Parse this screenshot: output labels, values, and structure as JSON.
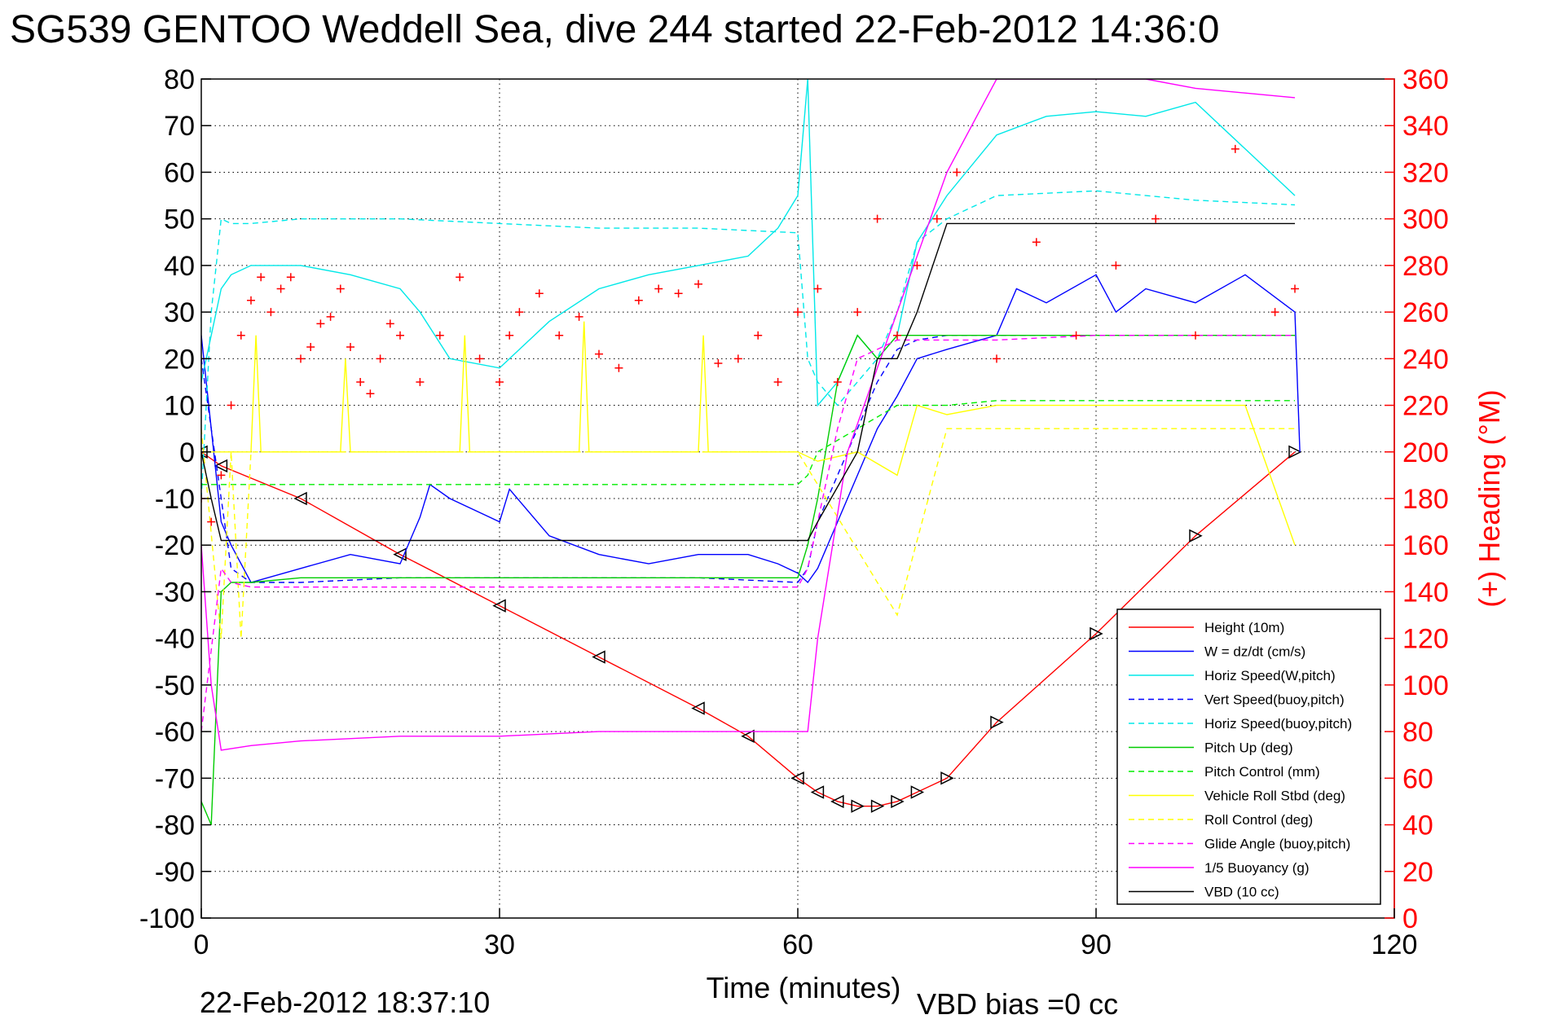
{
  "page": {
    "title": "SG539 GENTOO Weddell Sea, dive 244 started 22-Feb-2012 14:36:0",
    "timestamp": "22-Feb-2012 18:37:10",
    "vbd_bias": "VBD bias =0 cc"
  },
  "chart_data": {
    "type": "line",
    "title": "SG539 GENTOO Weddell Sea, dive 244 started 22-Feb-2012 14:36:0",
    "xlabel": "Time (minutes)",
    "ylabel": "",
    "y2label": "(+) Heading (°M)",
    "xlim": [
      0,
      120
    ],
    "ylim": [
      -100,
      80
    ],
    "y2lim": [
      0,
      360
    ],
    "xticks": [
      "0",
      "30",
      "60",
      "90",
      "120"
    ],
    "yticks": [
      "-100",
      "-90",
      "-80",
      "-70",
      "-60",
      "-50",
      "-40",
      "-30",
      "-20",
      "-10",
      "0",
      "10",
      "20",
      "30",
      "40",
      "50",
      "60",
      "70",
      "80"
    ],
    "y2ticks": [
      "0",
      "20",
      "40",
      "60",
      "80",
      "100",
      "120",
      "140",
      "160",
      "180",
      "200",
      "220",
      "240",
      "260",
      "280",
      "300",
      "320",
      "340",
      "360"
    ],
    "grid": true,
    "legend_position": "bottom-right",
    "series": [
      {
        "name": "Height (10m)",
        "color": "#ff0000",
        "style": "solid",
        "x": [
          0,
          2,
          10,
          20,
          30,
          40,
          50,
          55,
          60,
          62,
          64,
          66,
          68,
          70,
          72,
          75,
          80,
          90,
          100,
          110
        ],
        "y": [
          0,
          -3,
          -10,
          -22,
          -33,
          -44,
          -55,
          -61,
          -70,
          -73,
          -75,
          -76,
          -76,
          -75,
          -73,
          -70,
          -58,
          -39,
          -18,
          0
        ]
      },
      {
        "name": "W = dz/dt (cm/s)",
        "color": "#0000ff",
        "style": "solid",
        "x": [
          0,
          1,
          2,
          3,
          5,
          10,
          15,
          20,
          22,
          23,
          25,
          30,
          31,
          35,
          40,
          45,
          50,
          55,
          58,
          60,
          61,
          62,
          64,
          66,
          68,
          70,
          72,
          75,
          80,
          82,
          85,
          90,
          92,
          95,
          100,
          105,
          110,
          110.5
        ],
        "y": [
          25,
          5,
          -15,
          -20,
          -28,
          -25,
          -22,
          -24,
          -14,
          -7,
          -10,
          -15,
          -8,
          -18,
          -22,
          -24,
          -22,
          -22,
          -24,
          -26,
          -28,
          -25,
          -15,
          -5,
          5,
          12,
          20,
          22,
          25,
          35,
          32,
          38,
          30,
          35,
          32,
          38,
          30,
          0
        ]
      },
      {
        "name": "Horiz Speed(W,pitch)",
        "color": "#00e8e8",
        "style": "solid",
        "x": [
          0,
          1,
          2,
          3,
          5,
          10,
          15,
          20,
          22,
          25,
          30,
          32,
          35,
          40,
          45,
          50,
          55,
          58,
          60,
          61,
          62,
          64,
          66,
          68,
          70,
          72,
          75,
          80,
          85,
          90,
          95,
          100,
          105,
          110
        ],
        "y": [
          15,
          25,
          35,
          38,
          40,
          40,
          38,
          35,
          30,
          20,
          18,
          22,
          28,
          35,
          38,
          40,
          42,
          48,
          55,
          80,
          10,
          15,
          25,
          20,
          25,
          45,
          55,
          68,
          72,
          73,
          72,
          75,
          65,
          55
        ]
      },
      {
        "name": "Vert Speed(buoy,pitch)",
        "color": "#0000ff",
        "style": "dashed",
        "x": [
          0,
          2,
          3,
          5,
          10,
          20,
          30,
          40,
          50,
          60,
          61,
          62,
          64,
          66,
          68,
          70,
          72,
          75,
          80,
          90,
          100,
          110
        ],
        "y": [
          20,
          -10,
          -25,
          -28,
          -28,
          -27,
          -27,
          -27,
          -27,
          -28,
          -25,
          -15,
          -5,
          5,
          15,
          22,
          24,
          25,
          25,
          25,
          25,
          25
        ]
      },
      {
        "name": "Horiz Speed(buoy,pitch)",
        "color": "#00e8e8",
        "style": "dashed",
        "x": [
          0,
          1,
          2,
          3,
          5,
          10,
          20,
          30,
          40,
          50,
          60,
          61,
          62,
          64,
          66,
          68,
          70,
          72,
          75,
          80,
          90,
          100,
          110
        ],
        "y": [
          -10,
          30,
          50,
          49,
          49,
          50,
          50,
          49,
          48,
          48,
          47,
          20,
          15,
          10,
          15,
          20,
          30,
          45,
          50,
          55,
          56,
          54,
          53
        ]
      },
      {
        "name": "Pitch Up (deg)",
        "color": "#00cc00",
        "style": "solid",
        "x": [
          0,
          1,
          2,
          3,
          5,
          10,
          20,
          30,
          40,
          50,
          60,
          61,
          62,
          64,
          66,
          68,
          70,
          72,
          75,
          80,
          90,
          100,
          110
        ],
        "y": [
          -75,
          -80,
          -30,
          -28,
          -28,
          -27,
          -27,
          -27,
          -27,
          -27,
          -27,
          -20,
          -10,
          15,
          25,
          20,
          25,
          25,
          25,
          25,
          25,
          25,
          25
        ]
      },
      {
        "name": "Pitch Control (mm)",
        "color": "#00ee00",
        "style": "dashed",
        "x": [
          0,
          2,
          5,
          20,
          40,
          60,
          61,
          62,
          70,
          75,
          80,
          90,
          100,
          110
        ],
        "y": [
          -7,
          -7,
          -7,
          -7,
          -7,
          -7,
          -5,
          0,
          10,
          10,
          11,
          11,
          11,
          11
        ]
      },
      {
        "name": "Vehicle Roll Stbd (deg)",
        "color": "#ffff00",
        "style": "solid",
        "x": [
          0,
          5,
          5.5,
          6,
          10,
          14,
          14.5,
          15,
          20,
          26,
          26.5,
          27,
          32,
          38,
          38.5,
          39,
          44,
          50,
          50.5,
          51,
          55,
          60,
          62,
          66,
          70,
          72,
          75,
          80,
          85,
          90,
          95,
          100,
          105,
          110
        ],
        "y": [
          0,
          0,
          25,
          0,
          0,
          0,
          20,
          0,
          0,
          0,
          25,
          0,
          0,
          0,
          28,
          0,
          0,
          0,
          25,
          0,
          0,
          0,
          -2,
          0,
          -5,
          10,
          8,
          10,
          10,
          10,
          10,
          10,
          10,
          -20
        ]
      },
      {
        "name": "Roll Control (deg)",
        "color": "#ffff00",
        "style": "dashed",
        "x": [
          0,
          2,
          3,
          4,
          5,
          10,
          20,
          30,
          40,
          50,
          60,
          70,
          75,
          80,
          90,
          100,
          110
        ],
        "y": [
          5,
          -40,
          0,
          -40,
          0,
          0,
          0,
          0,
          0,
          0,
          0,
          -35,
          5,
          5,
          5,
          5,
          5
        ]
      },
      {
        "name": "Glide Angle (buoy,pitch)",
        "color": "#ff00ff",
        "style": "dashed",
        "x": [
          0,
          2,
          3,
          5,
          10,
          20,
          30,
          40,
          50,
          60,
          61,
          62,
          64,
          66,
          68,
          70,
          75,
          80,
          90,
          100,
          110
        ],
        "y": [
          -60,
          -25,
          -28,
          -29,
          -29,
          -29,
          -29,
          -29,
          -29,
          -29,
          -25,
          -15,
          5,
          20,
          22,
          24,
          24,
          24,
          25,
          25,
          25
        ]
      },
      {
        "name": "1/5 Buoyancy (g)",
        "color": "#ff00ff",
        "style": "solid",
        "x": [
          0,
          1,
          2,
          5,
          10,
          20,
          30,
          40,
          50,
          61,
          62,
          65,
          70,
          75,
          80,
          85,
          90,
          95,
          100,
          105,
          110
        ],
        "y": [
          -20,
          -50,
          -64,
          -63,
          -62,
          -61,
          -61,
          -60,
          -60,
          -60,
          -40,
          0,
          30,
          60,
          80,
          80,
          80,
          80,
          78,
          77,
          76
        ]
      },
      {
        "name": "VBD (10 cc)",
        "color": "#000000",
        "style": "solid",
        "x": [
          0,
          1,
          2,
          5,
          10,
          20,
          30,
          40,
          50,
          60,
          61,
          62,
          66,
          68,
          70,
          72,
          75,
          80,
          90,
          100,
          110
        ],
        "y": [
          0,
          -10,
          -19,
          -19,
          -19,
          -19,
          -19,
          -19,
          -19,
          -19,
          -19,
          -15,
          0,
          20,
          20,
          30,
          49,
          49,
          49,
          49,
          49
        ]
      },
      {
        "name": "Heading",
        "color": "#ff0000",
        "style": "plus",
        "axis": "right",
        "x": [
          0,
          1,
          2,
          3,
          4,
          5,
          6,
          7,
          8,
          9,
          10,
          11,
          12,
          13,
          14,
          15,
          16,
          17,
          18,
          19,
          20,
          22,
          24,
          26,
          28,
          30,
          31,
          32,
          34,
          36,
          38,
          40,
          42,
          44,
          46,
          48,
          50,
          52,
          54,
          56,
          58,
          60,
          62,
          64,
          66,
          68,
          70,
          72,
          74,
          76,
          80,
          84,
          88,
          92,
          96,
          100,
          104,
          108,
          110
        ],
        "y": [
          180,
          170,
          190,
          220,
          250,
          265,
          275,
          260,
          270,
          275,
          240,
          245,
          255,
          258,
          270,
          245,
          230,
          225,
          240,
          255,
          250,
          230,
          250,
          275,
          240,
          230,
          250,
          260,
          268,
          250,
          258,
          242,
          236,
          265,
          270,
          268,
          272,
          238,
          240,
          250,
          230,
          260,
          270,
          230,
          260,
          300,
          250,
          280,
          300,
          320,
          240,
          290,
          250,
          280,
          300,
          250,
          330,
          260,
          270
        ]
      }
    ]
  }
}
